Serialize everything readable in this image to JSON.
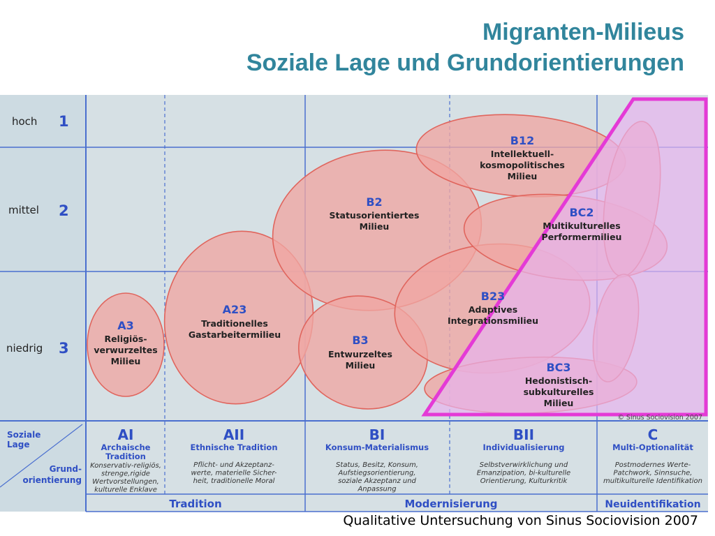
{
  "title": "Migranten-Milieus",
  "subtitle": "Soziale Lage und Grundorientierungen",
  "caption": "Qualitative Untersuchung von Sinus Sociovision 2007",
  "copyright": "© Sinus Sociovision 2007",
  "colors": {
    "title": "#31859c",
    "milieu_fill": "#f0a7a3",
    "milieu_stroke": "#e0655d",
    "bc_area_fill": "#e8b8ee",
    "bc_area_stroke": "#e43ad6",
    "grid_blue": "#4a6fcf",
    "background": "#d4dfe4"
  },
  "rows": [
    {
      "label": "hoch",
      "number": "1"
    },
    {
      "label": "mittel",
      "number": "2"
    },
    {
      "label": "niedrig",
      "number": "3"
    }
  ],
  "corner": {
    "top": "Soziale Lage",
    "bottom": "Grund- orientierung"
  },
  "columns": [
    {
      "code": "AI",
      "name": "Archaische Tradition",
      "desc": [
        "Konservativ-religiös,",
        "strenge,rigide",
        "Wertvorstellungen,",
        "kulturelle Enklave"
      ]
    },
    {
      "code": "AII",
      "name": "Ethnische Tradition",
      "desc": [
        "Pflicht- und Akzeptanz-",
        "werte, materielle Sicher-",
        "heit, traditionelle Moral"
      ]
    },
    {
      "code": "BI",
      "name": "Konsum-Materialismus",
      "desc": [
        "Status, Besitz, Konsum,",
        "Aufstiegsorientierung,",
        "soziale Akzeptanz und",
        "Anpassung"
      ]
    },
    {
      "code": "BII",
      "name": "Individualisierung",
      "desc": [
        "Selbstverwirklichung und",
        "Emanzipation, bi-kulturelle",
        "Orientierung, Kulturkritik"
      ]
    },
    {
      "code": "C",
      "name": "Multi-Optionalität",
      "desc": [
        "Postmodernes Werte-",
        "Patchwork, Sinnsuche,",
        "multikulturelle Identifikation"
      ]
    }
  ],
  "groups": [
    {
      "label": "Tradition"
    },
    {
      "label": "Modernisierung"
    },
    {
      "label": "Neuidentifikation"
    }
  ],
  "milieus": [
    {
      "code": "A3",
      "name": [
        "Religiös-",
        "verwurzeltes",
        "Milieu"
      ]
    },
    {
      "code": "A23",
      "name": [
        "Traditionelles",
        "Gastarbeitermilieu"
      ]
    },
    {
      "code": "B2",
      "name": [
        "Statusorientiertes",
        "Milieu"
      ]
    },
    {
      "code": "B3",
      "name": [
        "Entwurzeltes",
        "Milieu"
      ]
    },
    {
      "code": "B12",
      "name": [
        "Intellektuell-",
        "kosmopolitisches",
        "Milieu"
      ]
    },
    {
      "code": "B23",
      "name": [
        "Adaptives",
        "Integrationsmilieu"
      ]
    },
    {
      "code": "BC2",
      "name": [
        "Multikulturelles",
        "Performermilieu"
      ]
    },
    {
      "code": "BC3",
      "name": [
        "Hedonistisch-",
        "subkulturelles",
        "Milieu"
      ]
    }
  ]
}
